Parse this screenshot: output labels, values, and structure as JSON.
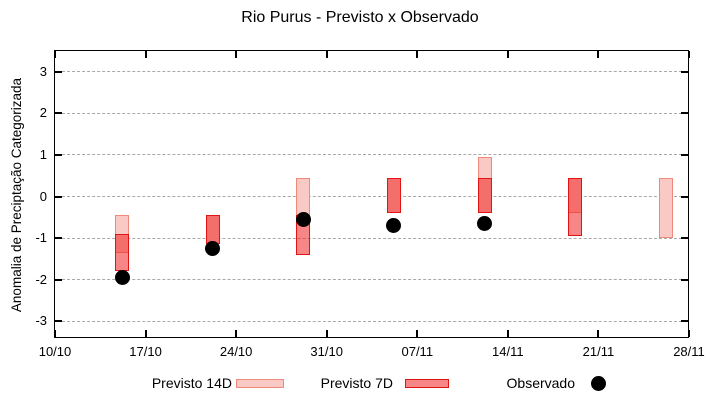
{
  "title": "Rio Purus - Previsto x Observado",
  "ylabel": "Anomalia de Preciptação Categorizada",
  "legend": {
    "previsto_14d_label": "Previsto 14D",
    "previsto_7d_label": "Previsto 7D",
    "observado_label": "Observado"
  },
  "colors": {
    "previsto_14d_fill": "#f9cac5",
    "previsto_14d_border": "#ef8a7a",
    "previsto_7d_fill": "rgba(240,35,35,0.55)",
    "previsto_7d_solid": "#f78787",
    "previsto_7d_border": "#e41414",
    "observado": "#000000",
    "grid": "#a9a9a9",
    "frame": "#000000"
  },
  "chart_data": {
    "type": "bar",
    "subtype": "overlapping-range-candlesticks-with-points",
    "title": "Rio Purus - Previsto x Observado",
    "xlabel": "",
    "ylabel": "Anomalia de Preciptação Categorizada",
    "ylim": [
      -3.4,
      3.5
    ],
    "y_ticks": [
      3,
      2,
      1,
      0,
      -1,
      -2,
      -3
    ],
    "x_ticks": [
      "10/10",
      "17/10",
      "24/10",
      "31/10",
      "07/11",
      "14/11",
      "21/11",
      "28/11"
    ],
    "x_tick_day_offsets": [
      0,
      7,
      14,
      21,
      28,
      35,
      42,
      49
    ],
    "x_span_days": 49,
    "grid": "dashed horizontal at every y tick",
    "legend_position": "below plot, centered row",
    "series_legend": [
      "Previsto 14D",
      "Previsto 7D",
      "Observado"
    ],
    "groups": [
      {
        "date": "15/10",
        "day_offset": 5.2,
        "previsto_14d": {
          "from": -0.45,
          "to": -1.35
        },
        "previsto_7d": {
          "from": -0.9,
          "to": -1.8
        },
        "observado": -1.95
      },
      {
        "date": "22/10",
        "day_offset": 12.2,
        "previsto_14d": {
          "from": -0.45,
          "to": -1.15
        },
        "previsto_7d": {
          "from": -0.45,
          "to": -1.15
        },
        "observado": -1.25
      },
      {
        "date": "29/10",
        "day_offset": 19.2,
        "previsto_14d": {
          "from": 0.45,
          "to": -0.45
        },
        "previsto_7d": {
          "from": -0.45,
          "to": -1.4
        },
        "observado": -0.55
      },
      {
        "date": "05/11",
        "day_offset": 26.2,
        "previsto_14d": {
          "from": 0.45,
          "to": -0.4
        },
        "previsto_7d": {
          "from": 0.45,
          "to": -0.4
        },
        "observado": -0.7
      },
      {
        "date": "12/11",
        "day_offset": 33.2,
        "previsto_14d": {
          "from": 0.95,
          "to": -0.4
        },
        "previsto_7d": {
          "from": 0.45,
          "to": -0.4
        },
        "observado": -0.65
      },
      {
        "date": "19/11",
        "day_offset": 40.2,
        "previsto_14d": {
          "from": 0.45,
          "to": -0.4
        },
        "previsto_7d": {
          "from": 0.45,
          "to": -0.95
        },
        "observado": null
      },
      {
        "date": "26/11",
        "day_offset": 47.2,
        "previsto_14d": {
          "from": 0.45,
          "to": -1.0
        },
        "previsto_7d": null,
        "observado": null
      }
    ]
  }
}
